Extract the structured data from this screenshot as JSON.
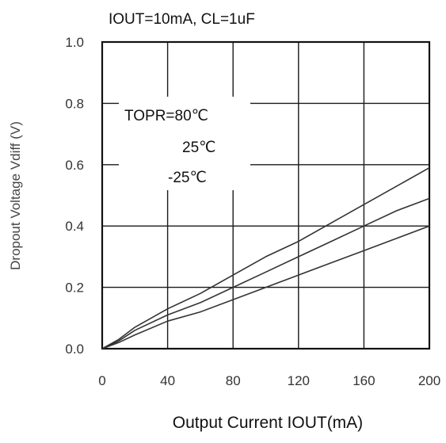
{
  "chart_data": {
    "type": "line",
    "title": "IOUT=10mA, CL=1uF",
    "xlabel": "Output Current IOUT(mA)",
    "ylabel": "Dropout Voltage Vdiff (V)",
    "xlim": [
      0,
      200
    ],
    "ylim": [
      0,
      1.0
    ],
    "x_ticks": [
      "0",
      "40",
      "80",
      "120",
      "160",
      "200"
    ],
    "y_ticks": [
      "0.0",
      "0.2",
      "0.4",
      "0.6",
      "0.8",
      "1.0"
    ],
    "grid": true,
    "legend": "none",
    "annotations": [
      "TOPR=80℃",
      "25℃",
      "-25℃"
    ],
    "x": [
      0,
      10,
      20,
      40,
      60,
      80,
      100,
      120,
      140,
      160,
      180,
      200
    ],
    "series": [
      {
        "values": [
          0.0,
          0.03,
          0.07,
          0.13,
          0.18,
          0.24,
          0.3,
          0.35,
          0.41,
          0.47,
          0.53,
          0.59
        ]
      },
      {
        "values": [
          0.0,
          0.025,
          0.06,
          0.11,
          0.15,
          0.2,
          0.25,
          0.3,
          0.35,
          0.4,
          0.45,
          0.49
        ]
      },
      {
        "values": [
          0.0,
          0.02,
          0.045,
          0.09,
          0.12,
          0.16,
          0.2,
          0.24,
          0.28,
          0.32,
          0.36,
          0.4
        ]
      }
    ],
    "line_color": "#333333",
    "grid_color": "#1a1a1a"
  }
}
